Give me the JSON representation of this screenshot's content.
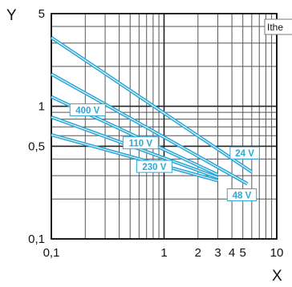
{
  "chart_data": {
    "type": "line",
    "xlabel": "X",
    "ylabel": "Y",
    "xscale": "log",
    "yscale": "log",
    "xlim": [
      0.1,
      10
    ],
    "ylim": [
      0.1,
      5
    ],
    "x_tick_labels": [
      {
        "value": 0.1,
        "label": "0,1"
      },
      {
        "value": 1,
        "label": "1"
      },
      {
        "value": 2,
        "label": "2"
      },
      {
        "value": 3,
        "label": "3"
      },
      {
        "value": 4,
        "label": "4"
      },
      {
        "value": 5,
        "label": "5"
      },
      {
        "value": 10,
        "label": "10"
      }
    ],
    "y_tick_labels": [
      {
        "value": 0.1,
        "label": "0,1"
      },
      {
        "value": 0.5,
        "label": "0,5"
      },
      {
        "value": 1,
        "label": "1"
      },
      {
        "value": 5,
        "label": "5"
      }
    ],
    "grid": true,
    "annotation": "Ithe",
    "line_color": "#2ea8d6",
    "series": [
      {
        "name": "24 V",
        "points": [
          [
            0.1,
            3.3
          ],
          [
            6.0,
            0.32
          ]
        ]
      },
      {
        "name": "48 V",
        "points": [
          [
            0.1,
            1.75
          ],
          [
            5.5,
            0.26
          ]
        ]
      },
      {
        "name": "400 V",
        "points": [
          [
            0.1,
            1.18
          ],
          [
            3.0,
            0.305
          ]
        ]
      },
      {
        "name": "110 V",
        "points": [
          [
            0.1,
            0.83
          ],
          [
            3.0,
            0.29
          ]
        ]
      },
      {
        "name": "230 V",
        "points": [
          [
            0.1,
            0.61
          ],
          [
            3.0,
            0.275
          ]
        ]
      }
    ]
  }
}
